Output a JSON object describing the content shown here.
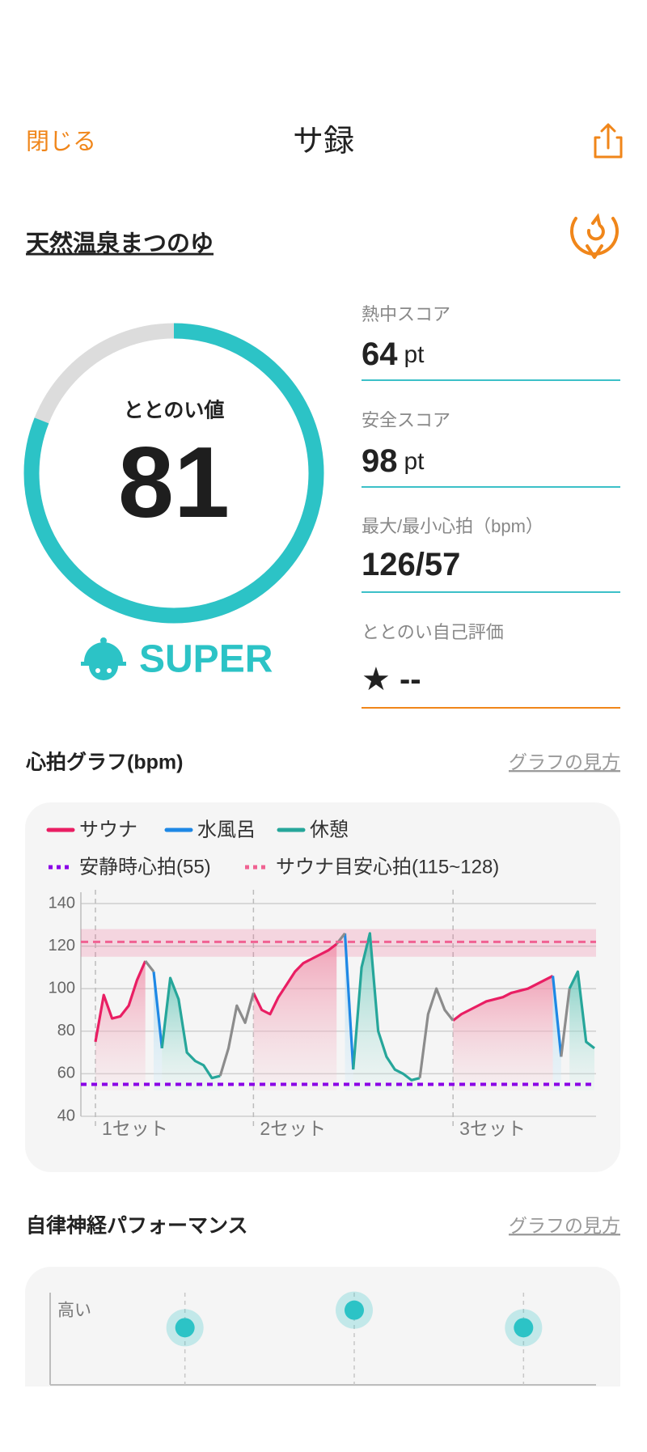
{
  "header": {
    "close": "閉じる",
    "title": "サ録"
  },
  "facility": "天然温泉まつのゆ",
  "score": {
    "label": "ととのい値",
    "value": 81,
    "max": 100,
    "rank": "SUPER",
    "color": "#2cc3c6",
    "track_color": "#dcdcdc"
  },
  "metrics": [
    {
      "label": "熱中スコア",
      "value": 64,
      "unit": "pt"
    },
    {
      "label": "安全スコア",
      "value": 98,
      "unit": "pt"
    },
    {
      "label": "最大/最小心拍（bpm）",
      "value": "126/57"
    },
    {
      "label": "ととのい自己評価",
      "value": "★ --"
    }
  ],
  "sections": [
    {
      "title": "心拍グラフ(bpm)",
      "help": "グラフの見方"
    },
    {
      "title": "自律神経パフォーマンス",
      "help": "グラフの見方"
    }
  ],
  "chart_data": [
    {
      "type": "line",
      "xlim": [
        0,
        60
      ],
      "ylim": [
        40,
        140
      ],
      "yticks": [
        40,
        60,
        80,
        100,
        120,
        140
      ],
      "grid": true,
      "series": [
        {
          "name": "サウナ",
          "color": "#e91e63",
          "fill": "#f4a3b6",
          "values": [
            75,
            97,
            86,
            87,
            92,
            104,
            113,
            null,
            null,
            null,
            null,
            null,
            null,
            null,
            null,
            null,
            null,
            null,
            null,
            98,
            90,
            88,
            96,
            102,
            108,
            112,
            114,
            116,
            118,
            121,
            null,
            null,
            null,
            null,
            null,
            null,
            null,
            null,
            null,
            null,
            null,
            null,
            null,
            85,
            88,
            90,
            92,
            94,
            95,
            96,
            98,
            99,
            100,
            102,
            104,
            106,
            null,
            null,
            null,
            null,
            null
          ]
        },
        {
          "name": "水風呂",
          "color": "#1e88e5",
          "fill": "#b9dff0",
          "values": [
            null,
            null,
            null,
            null,
            null,
            null,
            null,
            108,
            72,
            null,
            null,
            null,
            null,
            null,
            null,
            null,
            null,
            null,
            null,
            null,
            null,
            null,
            null,
            null,
            null,
            null,
            null,
            null,
            null,
            null,
            126,
            62,
            null,
            null,
            null,
            null,
            null,
            null,
            null,
            null,
            null,
            null,
            null,
            null,
            null,
            null,
            null,
            null,
            null,
            null,
            null,
            null,
            null,
            null,
            null,
            106,
            68,
            null,
            null,
            null,
            null
          ]
        },
        {
          "name": "休憩",
          "color": "#26a69a",
          "fill": "#9fd9d0",
          "values": [
            null,
            null,
            null,
            null,
            null,
            null,
            null,
            null,
            72,
            105,
            95,
            70,
            66,
            64,
            58,
            59,
            null,
            null,
            null,
            null,
            null,
            null,
            null,
            null,
            null,
            null,
            null,
            null,
            null,
            null,
            null,
            62,
            110,
            126,
            80,
            68,
            62,
            60,
            57,
            58,
            null,
            null,
            null,
            null,
            null,
            null,
            null,
            null,
            null,
            null,
            null,
            null,
            null,
            null,
            null,
            null,
            null,
            100,
            108,
            75,
            72
          ]
        },
        {
          "color": "#8c8c8c",
          "values": [
            null,
            null,
            null,
            null,
            null,
            null,
            113,
            108,
            null,
            null,
            null,
            null,
            null,
            null,
            null,
            59,
            72,
            92,
            84,
            98,
            null,
            null,
            null,
            null,
            null,
            null,
            null,
            null,
            null,
            121,
            126,
            null,
            null,
            null,
            null,
            null,
            null,
            null,
            null,
            58,
            88,
            100,
            90,
            85,
            null,
            null,
            null,
            null,
            null,
            null,
            null,
            null,
            null,
            null,
            null,
            null,
            68,
            100,
            null,
            null,
            null
          ]
        }
      ],
      "reference_lines": [
        {
          "name": "安静時心拍(55)",
          "value": 55,
          "color": "#8a00e6"
        },
        {
          "name": "サウナ目安心拍(115~128)",
          "value": 122,
          "range": [
            115,
            128
          ],
          "color": "#f06292"
        }
      ],
      "sets": [
        {
          "label": "1セット",
          "start": 0
        },
        {
          "label": "2セット",
          "start": 19
        },
        {
          "label": "3セット",
          "start": 43
        }
      ]
    },
    {
      "type": "scatter",
      "ylabel": "高い",
      "ylim": [
        0,
        100
      ],
      "values": [
        62,
        81,
        62
      ],
      "color": "#2cc3c6"
    }
  ]
}
